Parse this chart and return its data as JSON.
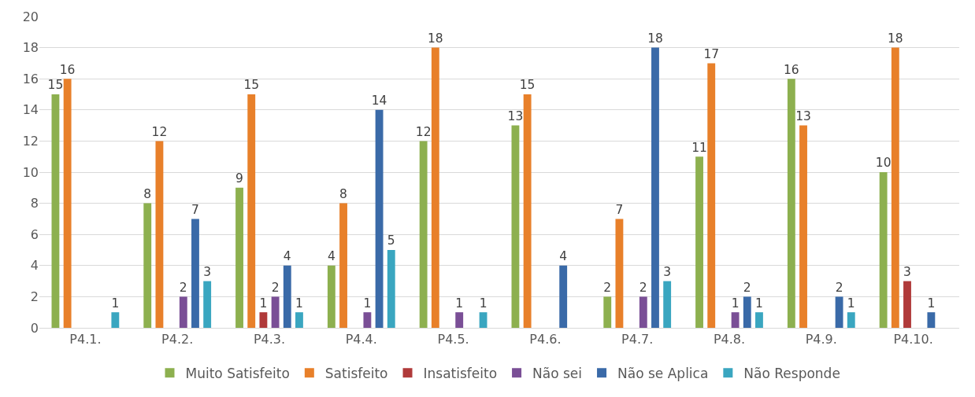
{
  "chart_data": {
    "type": "bar",
    "categories": [
      "P4.1.",
      "P4.2.",
      "P4.3.",
      "P4.4.",
      "P4.5.",
      "P4.6.",
      "P4.7.",
      "P4.8.",
      "P4.9.",
      "P4.10."
    ],
    "series": [
      {
        "name": "Muito Satisfeito",
        "color": "#8db04f",
        "values": [
          15,
          8,
          9,
          4,
          12,
          13,
          2,
          11,
          16,
          10
        ]
      },
      {
        "name": "Satisfeito",
        "color": "#e8802a",
        "values": [
          16,
          12,
          15,
          8,
          18,
          15,
          7,
          17,
          13,
          18
        ]
      },
      {
        "name": "Insatisfeito",
        "color": "#b03a3a",
        "values": [
          null,
          null,
          1,
          null,
          null,
          null,
          null,
          null,
          null,
          3
        ]
      },
      {
        "name": "Não sei",
        "color": "#7a4f96",
        "values": [
          null,
          2,
          2,
          1,
          1,
          null,
          2,
          1,
          null,
          null
        ]
      },
      {
        "name": "Não se Aplica",
        "color": "#3a6aa8",
        "values": [
          null,
          7,
          4,
          14,
          null,
          4,
          18,
          2,
          2,
          1
        ]
      },
      {
        "name": "Não Responde",
        "color": "#3aa6c0",
        "values": [
          1,
          3,
          1,
          5,
          1,
          null,
          3,
          1,
          1,
          null
        ]
      }
    ],
    "ylim": [
      0,
      20
    ],
    "yticks": [
      0,
      2,
      4,
      6,
      8,
      10,
      12,
      14,
      16,
      18,
      20
    ],
    "grid": "y",
    "legend": "bottom",
    "data_labels": true
  }
}
